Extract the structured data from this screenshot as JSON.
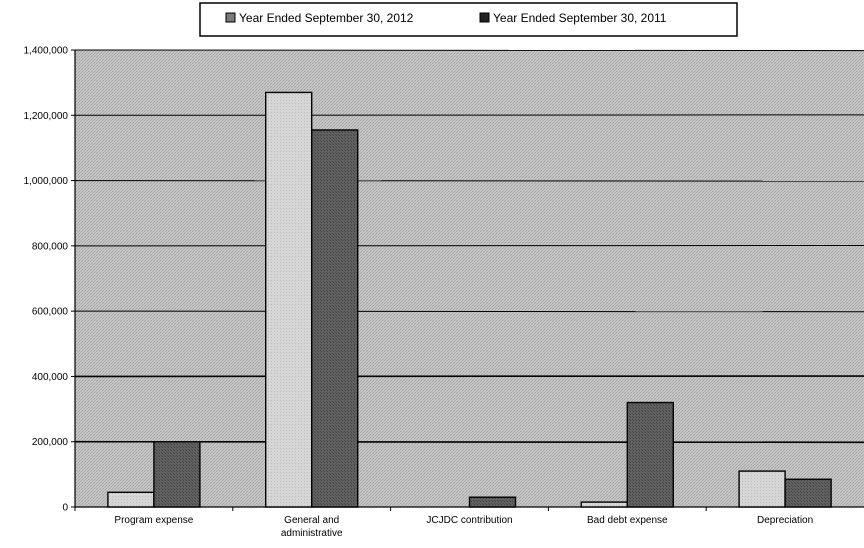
{
  "chart_data": {
    "type": "bar",
    "title": "",
    "xlabel": "",
    "ylabel": "",
    "categories": [
      "Program expense",
      "General and\nadministrative",
      "JCJDC contribution",
      "Bad debt expense",
      "Depreciation"
    ],
    "series": [
      {
        "name": "Year Ended September 30, 2012",
        "values": [
          45000,
          1270000,
          0,
          15000,
          110000
        ]
      },
      {
        "name": "Year Ended September 30, 2011",
        "values": [
          200000,
          1155000,
          30000,
          320000,
          85000
        ]
      }
    ],
    "ylim": [
      0,
      1400000
    ],
    "yticks": [
      0,
      200000,
      400000,
      600000,
      800000,
      1000000,
      1200000,
      1400000
    ],
    "ytick_labels": [
      "0",
      "200,000",
      "400,000",
      "600,000",
      "800,000",
      "1,000,000",
      "1,200,000",
      "1,400,000"
    ],
    "legend_position": "top-center",
    "grid": true,
    "colors": {
      "plot_bg": "#bdbdbd",
      "series": [
        "#cfcfcf",
        "#5a5a5a"
      ],
      "gridline": "#000000",
      "frame": "#000000"
    }
  }
}
